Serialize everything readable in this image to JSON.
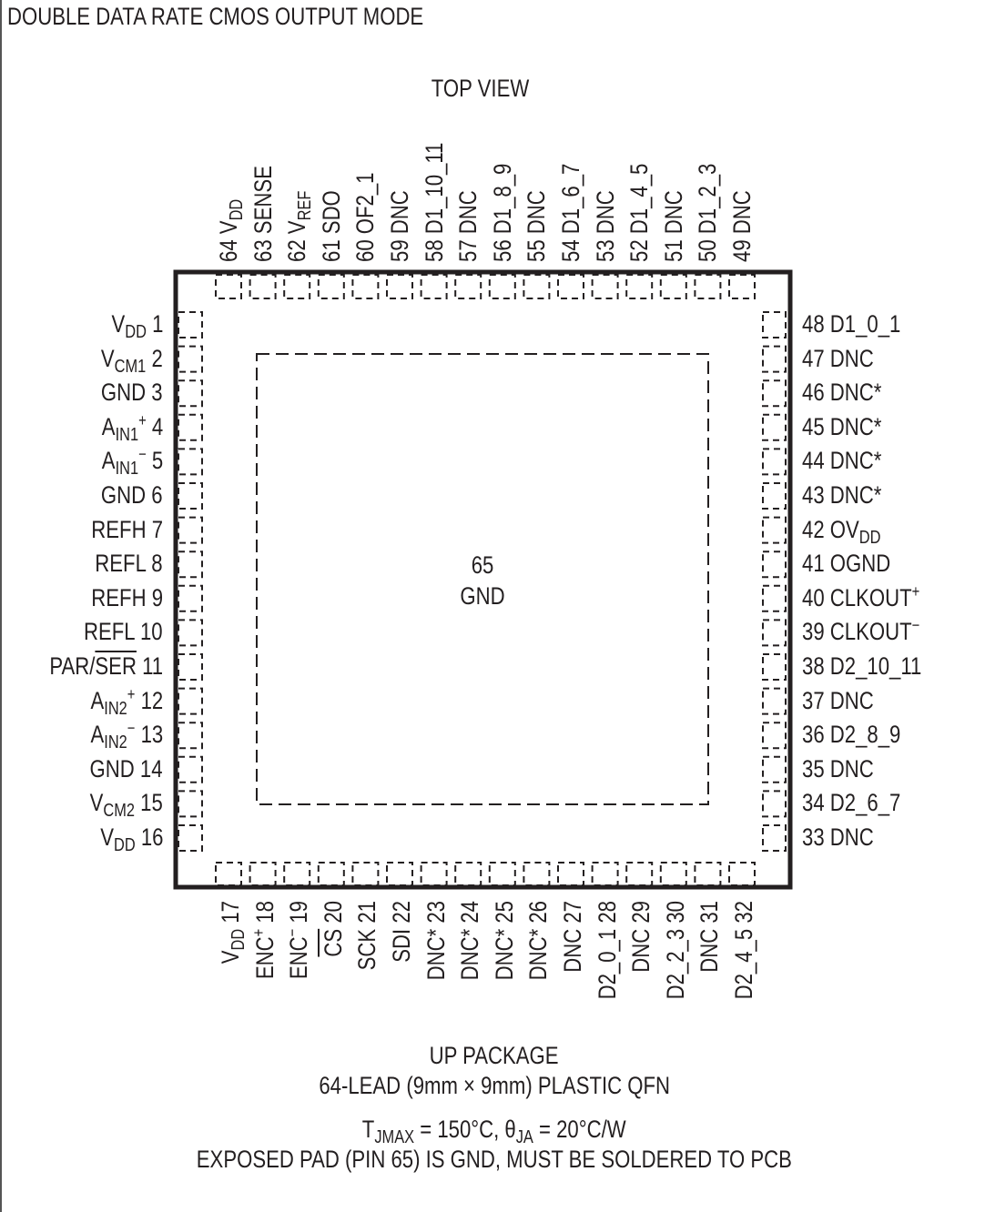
{
  "title": "DOUBLE DATA RATE CMOS OUTPUT MODE",
  "view_label": "TOP VIEW",
  "exposed_pad": {
    "number": "65",
    "name": "GND"
  },
  "colors": {
    "ink": "#231f20"
  },
  "pins": {
    "left": [
      {
        "num": "1",
        "pre": "V",
        "sub": "DD"
      },
      {
        "num": "2",
        "pre": "V",
        "sub": "CM1"
      },
      {
        "num": "3",
        "pre": "GND"
      },
      {
        "num": "4",
        "pre": "A",
        "sub": "IN1",
        "sup": "+"
      },
      {
        "num": "5",
        "pre": "A",
        "sub": "IN1",
        "sup": "−"
      },
      {
        "num": "6",
        "pre": "GND"
      },
      {
        "num": "7",
        "pre": "REFH"
      },
      {
        "num": "8",
        "pre": "REFL"
      },
      {
        "num": "9",
        "pre": "REFH"
      },
      {
        "num": "10",
        "pre": "REFL"
      },
      {
        "num": "11",
        "pre": "PAR/",
        "over": "SER"
      },
      {
        "num": "12",
        "pre": "A",
        "sub": "IN2",
        "sup": "+"
      },
      {
        "num": "13",
        "pre": "A",
        "sub": "IN2",
        "sup": "−"
      },
      {
        "num": "14",
        "pre": "GND"
      },
      {
        "num": "15",
        "pre": "V",
        "sub": "CM2"
      },
      {
        "num": "16",
        "pre": "V",
        "sub": "DD"
      }
    ],
    "bottom": [
      {
        "num": "17",
        "pre": "V",
        "sub": "DD"
      },
      {
        "num": "18",
        "pre": "ENC",
        "sup": "+"
      },
      {
        "num": "19",
        "pre": "ENC",
        "sup": "−"
      },
      {
        "num": "20",
        "over": "CS"
      },
      {
        "num": "21",
        "pre": "SCK"
      },
      {
        "num": "22",
        "pre": "SDI"
      },
      {
        "num": "23",
        "pre": "DNC*"
      },
      {
        "num": "24",
        "pre": "DNC*"
      },
      {
        "num": "25",
        "pre": "DNC*"
      },
      {
        "num": "26",
        "pre": "DNC*"
      },
      {
        "num": "27",
        "pre": "DNC"
      },
      {
        "num": "28",
        "pre": "D2_0_1"
      },
      {
        "num": "29",
        "pre": "DNC"
      },
      {
        "num": "30",
        "pre": "D2_2_3"
      },
      {
        "num": "31",
        "pre": "DNC"
      },
      {
        "num": "32",
        "pre": "D2_4_5"
      }
    ],
    "right": [
      {
        "num": "48",
        "pre": "D1_0_1"
      },
      {
        "num": "47",
        "pre": "DNC"
      },
      {
        "num": "46",
        "pre": "DNC*"
      },
      {
        "num": "45",
        "pre": "DNC*"
      },
      {
        "num": "44",
        "pre": "DNC*"
      },
      {
        "num": "43",
        "pre": "DNC*"
      },
      {
        "num": "42",
        "pre": "OV",
        "sub": "DD"
      },
      {
        "num": "41",
        "pre": "OGND"
      },
      {
        "num": "40",
        "pre": "CLKOUT",
        "sup": "+"
      },
      {
        "num": "39",
        "pre": "CLKOUT",
        "sup": "−"
      },
      {
        "num": "38",
        "pre": "D2_10_11"
      },
      {
        "num": "37",
        "pre": "DNC"
      },
      {
        "num": "36",
        "pre": "D2_8_9"
      },
      {
        "num": "35",
        "pre": "DNC"
      },
      {
        "num": "34",
        "pre": "D2_6_7"
      },
      {
        "num": "33",
        "pre": "DNC"
      }
    ],
    "top": [
      {
        "num": "64",
        "pre": "V",
        "sub": "DD"
      },
      {
        "num": "63",
        "pre": "SENSE"
      },
      {
        "num": "62",
        "pre": "V",
        "sub": "REF"
      },
      {
        "num": "61",
        "pre": "SDO"
      },
      {
        "num": "60",
        "pre": "OF2_1"
      },
      {
        "num": "59",
        "pre": "DNC"
      },
      {
        "num": "58",
        "pre": "D1_10_11"
      },
      {
        "num": "57",
        "pre": "DNC"
      },
      {
        "num": "56",
        "pre": "D1_8_9"
      },
      {
        "num": "55",
        "pre": "DNC"
      },
      {
        "num": "54",
        "pre": "D1_6_7"
      },
      {
        "num": "53",
        "pre": "DNC"
      },
      {
        "num": "52",
        "pre": "D1_4_5"
      },
      {
        "num": "51",
        "pre": "DNC"
      },
      {
        "num": "50",
        "pre": "D1_2_3"
      },
      {
        "num": "49",
        "pre": "DNC"
      }
    ]
  },
  "package": {
    "name": "UP PACKAGE",
    "description": "64-LEAD (9mm × 9mm) PLASTIC QFN",
    "thermal": {
      "tj_pre": "T",
      "tj_sub": "JMAX",
      "tj_val": " = 150°C, ",
      "theta_pre": "θ",
      "theta_sub": "JA",
      "theta_val": " = 20°C/W"
    },
    "note": "EXPOSED PAD (PIN 65) IS GND, MUST BE SOLDERED TO PCB"
  }
}
